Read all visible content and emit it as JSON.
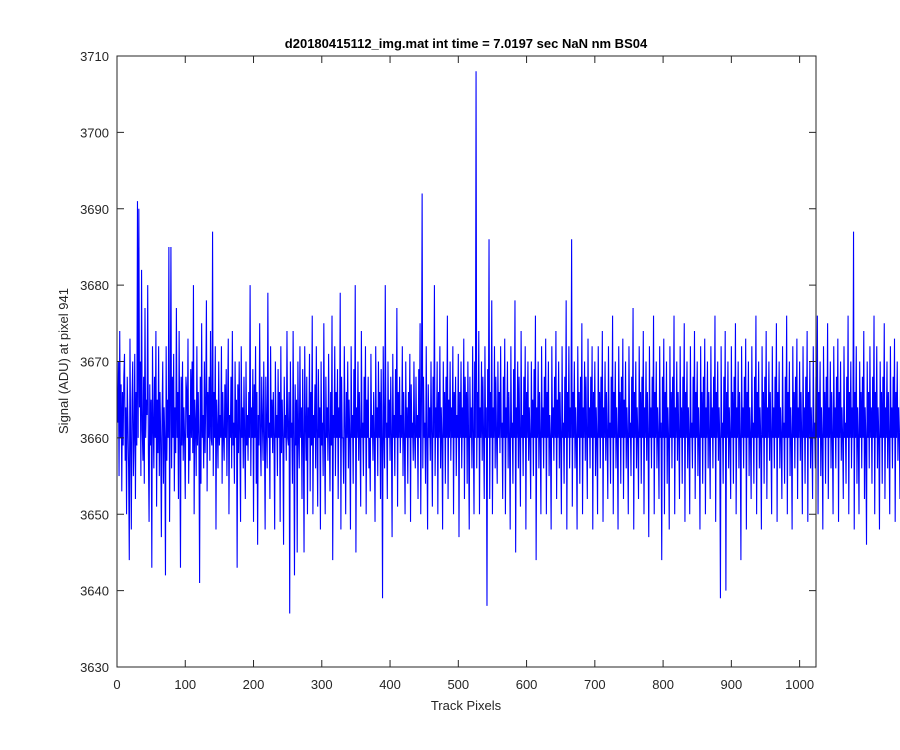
{
  "chart_data": {
    "type": "line",
    "title": "d20180415112_img.mat int time = 7.0197 sec  NaN nm BS04",
    "xlabel": "Track Pixels",
    "ylabel": "Signal (ADU) at pixel 941",
    "xlim": [
      0,
      1024
    ],
    "ylim": [
      3630,
      3710
    ],
    "xticks": [
      0,
      100,
      200,
      300,
      400,
      500,
      600,
      700,
      800,
      900,
      1000
    ],
    "yticks": [
      3630,
      3640,
      3650,
      3660,
      3670,
      3680,
      3690,
      3700,
      3710
    ],
    "grid": false,
    "legend": "none",
    "series": [
      {
        "color": "#0000ff",
        "x_start": 1,
        "x_step": 1,
        "values": [
          3662,
          3670,
          3655,
          3674,
          3660,
          3667,
          3653,
          3666,
          3659,
          3668,
          3671,
          3657,
          3664,
          3650,
          3668,
          3662,
          3656,
          3644,
          3673,
          3660,
          3648,
          3665,
          3670,
          3655,
          3660,
          3671,
          3652,
          3666,
          3659,
          3691,
          3660,
          3690,
          3664,
          3670,
          3655,
          3682,
          3661,
          3657,
          3668,
          3654,
          3677,
          3660,
          3665,
          3663,
          3680,
          3658,
          3649,
          3667,
          3659,
          3665,
          3643,
          3672,
          3662,
          3656,
          3668,
          3660,
          3674,
          3651,
          3665,
          3658,
          3672,
          3655,
          3666,
          3660,
          3647,
          3663,
          3670,
          3654,
          3664,
          3660,
          3642,
          3672,
          3657,
          3665,
          3660,
          3685,
          3649,
          3662,
          3685,
          3656,
          3668,
          3660,
          3671,
          3653,
          3664,
          3658,
          3677,
          3660,
          3666,
          3652,
          3674,
          3660,
          3643,
          3668,
          3659,
          3670,
          3657,
          3664,
          3660,
          3652,
          3668,
          3666,
          3660,
          3673,
          3654,
          3663,
          3657,
          3669,
          3660,
          3670,
          3658,
          3680,
          3650,
          3665,
          3662,
          3655,
          3672,
          3659,
          3666,
          3660,
          3641,
          3668,
          3654,
          3675,
          3660,
          3663,
          3656,
          3670,
          3658,
          3665,
          3678,
          3653,
          3666,
          3660,
          3668,
          3657,
          3674,
          3660,
          3659,
          3687,
          3655,
          3666,
          3660,
          3672,
          3648,
          3665,
          3661,
          3656,
          3670,
          3659,
          3663,
          3660,
          3672,
          3654,
          3666,
          3660,
          3657,
          3667,
          3660,
          3669,
          3655,
          3664,
          3673,
          3650,
          3663,
          3660,
          3668,
          3656,
          3674,
          3659,
          3662,
          3654,
          3670,
          3660,
          3665,
          3643,
          3667,
          3658,
          3670,
          3660,
          3649,
          3672,
          3660,
          3664,
          3656,
          3668,
          3660,
          3652,
          3670,
          3659,
          3663,
          3657,
          3666,
          3660,
          3680,
          3655,
          3664,
          3660,
          3669,
          3649,
          3667,
          3660,
          3672,
          3654,
          3666,
          3646,
          3663,
          3659,
          3675,
          3660,
          3655,
          3668,
          3662,
          3657,
          3670,
          3660,
          3648,
          3668,
          3661,
          3656,
          3679,
          3660,
          3662,
          3652,
          3672,
          3660,
          3665,
          3658,
          3666,
          3660,
          3648,
          3670,
          3660,
          3663,
          3655,
          3669,
          3660,
          3666,
          3649,
          3672,
          3658,
          3665,
          3660,
          3646,
          3668,
          3660,
          3663,
          3657,
          3674,
          3660,
          3659,
          3666,
          3637,
          3670,
          3660,
          3662,
          3654,
          3674,
          3660,
          3642,
          3667,
          3659,
          3665,
          3645,
          3670,
          3660,
          3656,
          3672,
          3660,
          3664,
          3652,
          3669,
          3660,
          3645,
          3672,
          3662,
          3657,
          3668,
          3650,
          3664,
          3660,
          3671,
          3653,
          3666,
          3659,
          3676,
          3650,
          3663,
          3660,
          3667,
          3656,
          3672,
          3660,
          3651,
          3669,
          3660,
          3664,
          3648,
          3670,
          3659,
          3662,
          3655,
          3675,
          3660,
          3650,
          3668,
          3660,
          3664,
          3657,
          3671,
          3660,
          3653,
          3666,
          3659,
          3676,
          3644,
          3663,
          3660,
          3672,
          3655,
          3666,
          3660,
          3669,
          3652,
          3664,
          3660,
          3679,
          3648,
          3668,
          3660,
          3660,
          3654,
          3672,
          3662,
          3650,
          3666,
          3660,
          3670,
          3656,
          3665,
          3660,
          3648,
          3672,
          3660,
          3663,
          3654,
          3669,
          3660,
          3680,
          3645,
          3664,
          3660,
          3670,
          3657,
          3666,
          3660,
          3651,
          3674,
          3660,
          3662,
          3655,
          3668,
          3660,
          3672,
          3650,
          3665,
          3660,
          3668,
          3656,
          3660,
          3653,
          3671,
          3660,
          3663,
          3657,
          3666,
          3660,
          3649,
          3672,
          3660,
          3664,
          3655,
          3670,
          3660,
          3666,
          3652,
          3669,
          3660,
          3639,
          3672,
          3661,
          3656,
          3680,
          3660,
          3662,
          3652,
          3670,
          3660,
          3665,
          3657,
          3668,
          3660,
          3647,
          3671,
          3660,
          3663,
          3655,
          3669,
          3660,
          3677,
          3651,
          3666,
          3660,
          3668,
          3658,
          3663,
          3660,
          3672,
          3655,
          3666,
          3660,
          3650,
          3670,
          3660,
          3664,
          3654,
          3666,
          3660,
          3671,
          3649,
          3667,
          3660,
          3662,
          3657,
          3670,
          3660,
          3656,
          3668,
          3660,
          3663,
          3652,
          3669,
          3660,
          3675,
          3650,
          3665,
          3692,
          3656,
          3668,
          3660,
          3662,
          3654,
          3672,
          3660,
          3648,
          3667,
          3660,
          3664,
          3657,
          3670,
          3660,
          3651,
          3668,
          3660,
          3680,
          3655,
          3664,
          3660,
          3670,
          3650,
          3666,
          3660,
          3672,
          3656,
          3664,
          3660,
          3648,
          3670,
          3660,
          3666,
          3654,
          3668,
          3660,
          3676,
          3652,
          3665,
          3660,
          3670,
          3657,
          3664,
          3660,
          3672,
          3650,
          3666,
          3660,
          3668,
          3655,
          3663,
          3660,
          3671,
          3647,
          3666,
          3660,
          3670,
          3656,
          3664,
          3660,
          3673,
          3652,
          3668,
          3660,
          3666,
          3654,
          3670,
          3660,
          3648,
          3668,
          3660,
          3664,
          3656,
          3672,
          3660,
          3650,
          3670,
          3660,
          3708,
          3656,
          3666,
          3660,
          3674,
          3650,
          3664,
          3660,
          3670,
          3657,
          3668,
          3660,
          3652,
          3672,
          3660,
          3664,
          3638,
          3669,
          3660,
          3686,
          3652,
          3666,
          3660,
          3678,
          3650,
          3664,
          3660,
          3672,
          3656,
          3668,
          3660,
          3654,
          3670,
          3660,
          3666,
          3658,
          3672,
          3660,
          3662,
          3652,
          3668,
          3660,
          3673,
          3650,
          3664,
          3660,
          3670,
          3656,
          3666,
          3660,
          3648,
          3672,
          3660,
          3662,
          3654,
          3669,
          3660,
          3678,
          3645,
          3664,
          3660,
          3670,
          3656,
          3668,
          3660,
          3651,
          3674,
          3660,
          3663,
          3655,
          3668,
          3660,
          3672,
          3648,
          3666,
          3660,
          3670,
          3657,
          3664,
          3660,
          3652,
          3670,
          3660,
          3665,
          3655,
          3669,
          3660,
          3676,
          3644,
          3664,
          3660,
          3670,
          3656,
          3666,
          3660,
          3650,
          3672,
          3660,
          3664,
          3656,
          3668,
          3660,
          3673,
          3650,
          3666,
          3660,
          3670,
          3655,
          3663,
          3660,
          3648,
          3672,
          3660,
          3664,
          3657,
          3668,
          3660,
          3674,
          3652,
          3665,
          3660,
          3670,
          3656,
          3666,
          3660,
          3650,
          3672,
          3660,
          3662,
          3654,
          3668,
          3660,
          3678,
          3648,
          3666,
          3660,
          3672,
          3656,
          3664,
          3660,
          3686,
          3651,
          3666,
          3660,
          3670,
          3656,
          3664,
          3660,
          3648,
          3672,
          3660,
          3666,
          3654,
          3668,
          3660,
          3675,
          3650,
          3664,
          3660,
          3670,
          3657,
          3668,
          3660,
          3652,
          3673,
          3660,
          3664,
          3656,
          3668,
          3660,
          3672,
          3648,
          3666,
          3660,
          3670,
          3655,
          3664,
          3660,
          3650,
          3672,
          3660,
          3666,
          3656,
          3668,
          3660,
          3674,
          3649,
          3664,
          3660,
          3670,
          3657,
          3666,
          3660,
          3652,
          3672,
          3660,
          3662,
          3654,
          3668,
          3660,
          3676,
          3650,
          3666,
          3660,
          3670,
          3656,
          3664,
          3660,
          3648,
          3672,
          3660,
          3666,
          3654,
          3668,
          3660,
          3673,
          3652,
          3665,
          3660,
          3670,
          3656,
          3664,
          3660,
          3650,
          3672,
          3660,
          3662,
          3655,
          3668,
          3660,
          3677,
          3648,
          3666,
          3660,
          3670,
          3656,
          3664,
          3660,
          3652,
          3672,
          3660,
          3666,
          3654,
          3668,
          3660,
          3674,
          3650,
          3664,
          3660,
          3670,
          3657,
          3666,
          3660,
          3647,
          3672,
          3660,
          3664,
          3656,
          3668,
          3660,
          3676,
          3650,
          3666,
          3660,
          3670,
          3656,
          3664,
          3660,
          3652,
          3672,
          3660,
          3662,
          3644,
          3668,
          3660,
          3673,
          3650,
          3666,
          3660,
          3670,
          3654,
          3664,
          3660,
          3648,
          3672,
          3660,
          3666,
          3656,
          3668,
          3660,
          3676,
          3650,
          3664,
          3660,
          3670,
          3657,
          3666,
          3660,
          3652,
          3672,
          3660,
          3664,
          3654,
          3668,
          3660,
          3675,
          3649,
          3666,
          3660,
          3670,
          3656,
          3664,
          3660,
          3650,
          3672,
          3660,
          3662,
          3656,
          3668,
          3660,
          3674,
          3652,
          3666,
          3660,
          3670,
          3655,
          3664,
          3660,
          3648,
          3672,
          3660,
          3666,
          3654,
          3668,
          3660,
          3673,
          3650,
          3664,
          3660,
          3670,
          3656,
          3666,
          3660,
          3652,
          3672,
          3660,
          3664,
          3656,
          3668,
          3660,
          3676,
          3649,
          3666,
          3660,
          3670,
          3657,
          3664,
          3660,
          3639,
          3672,
          3660,
          3662,
          3654,
          3668,
          3660,
          3674,
          3640,
          3666,
          3660,
          3670,
          3656,
          3664,
          3660,
          3652,
          3672,
          3660,
          3666,
          3654,
          3668,
          3660,
          3675,
          3650,
          3664,
          3660,
          3670,
          3656,
          3666,
          3660,
          3644,
          3672,
          3660,
          3664,
          3656,
          3668,
          3660,
          3673,
          3648,
          3666,
          3660,
          3670,
          3655,
          3664,
          3660,
          3652,
          3672,
          3660,
          3662,
          3654,
          3668,
          3660,
          3676,
          3650,
          3666,
          3660,
          3670,
          3656,
          3664,
          3660,
          3648,
          3672,
          3660,
          3666,
          3654,
          3668,
          3660,
          3674,
          3652,
          3664,
          3660,
          3670,
          3657,
          3666,
          3660,
          3650,
          3672,
          3660,
          3664,
          3656,
          3668,
          3660,
          3675,
          3649,
          3666,
          3660,
          3670,
          3656,
          3664,
          3660,
          3652,
          3672,
          3660,
          3662,
          3654,
          3668,
          3660,
          3676,
          3650,
          3666,
          3660,
          3670,
          3655,
          3664,
          3660,
          3648,
          3672,
          3660,
          3666,
          3656,
          3668,
          3660,
          3673,
          3652,
          3664,
          3660,
          3670,
          3657,
          3666,
          3660,
          3650,
          3672,
          3660,
          3664,
          3654,
          3668,
          3660,
          3674,
          3649,
          3666,
          3660,
          3670,
          3656,
          3664,
          3660,
          3652,
          3672,
          3660,
          3662,
          3656,
          3668,
          3660,
          3676,
          3650,
          3666,
          3660,
          3670,
          3655,
          3664,
          3660,
          3648,
          3672,
          3660,
          3666,
          3654,
          3668,
          3660,
          3675,
          3652,
          3664,
          3660,
          3670,
          3656,
          3666,
          3660,
          3650,
          3672,
          3660,
          3664,
          3656,
          3668,
          3660,
          3673,
          3649,
          3666,
          3660,
          3670,
          3657,
          3664,
          3660,
          3652,
          3672,
          3660,
          3662,
          3654,
          3668,
          3660,
          3676,
          3650,
          3666,
          3660,
          3670,
          3656,
          3664,
          3660,
          3687,
          3648,
          3666,
          3660,
          3672,
          3654,
          3664,
          3660,
          3650,
          3670,
          3660,
          3666,
          3656,
          3668,
          3660,
          3674,
          3652,
          3664,
          3660,
          3646,
          3670,
          3660,
          3666,
          3656,
          3672,
          3660,
          3664,
          3654,
          3668,
          3660,
          3676,
          3650,
          3666,
          3660,
          3672,
          3656,
          3664,
          3660,
          3648,
          3670,
          3660,
          3666,
          3654,
          3668,
          3660,
          3675,
          3652,
          3664,
          3660,
          3670,
          3656,
          3666,
          3660,
          3650,
          3672,
          3660,
          3664,
          3656,
          3668,
          3660,
          3673,
          3649,
          3666,
          3660,
          3670,
          3657,
          3664,
          3660,
          3652,
          3672,
          3660,
          3662,
          3654,
          3668,
          3660,
          3676,
          3651,
          3666,
          3660,
          3670,
          3656,
          3664,
          3660,
          3648,
          3672,
          3660,
          3666,
          3654,
          3668,
          3660,
          3674,
          3652,
          3664,
          3660,
          3670,
          3656,
          3666,
          3660,
          3650,
          3672,
          3651,
          3664,
          3660
        ]
      }
    ]
  }
}
